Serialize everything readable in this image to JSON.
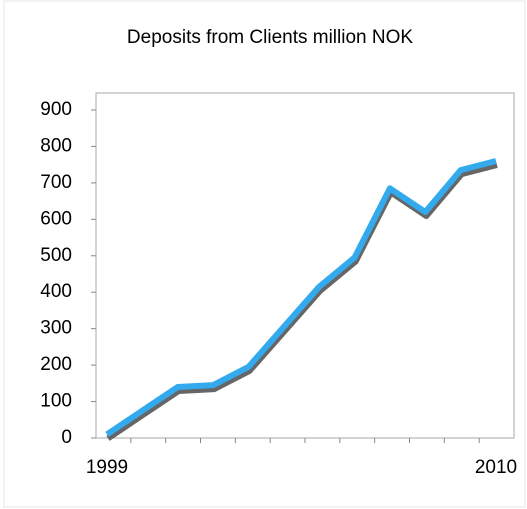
{
  "chart_data": {
    "type": "line",
    "title": "Deposits from Clients million NOK",
    "categories": [
      "1999",
      null,
      null,
      null,
      null,
      null,
      null,
      null,
      null,
      null,
      null,
      "2010"
    ],
    "series": [
      {
        "name": null,
        "color": "#33aaee",
        "values": [
          10,
          75,
          140,
          145,
          195,
          305,
          415,
          495,
          685,
          620,
          735,
          760
        ]
      }
    ],
    "ylim": [
      0,
      900
    ],
    "yticks": [
      0,
      100,
      200,
      300,
      400,
      500,
      600,
      700,
      800,
      900
    ],
    "grid": false
  }
}
